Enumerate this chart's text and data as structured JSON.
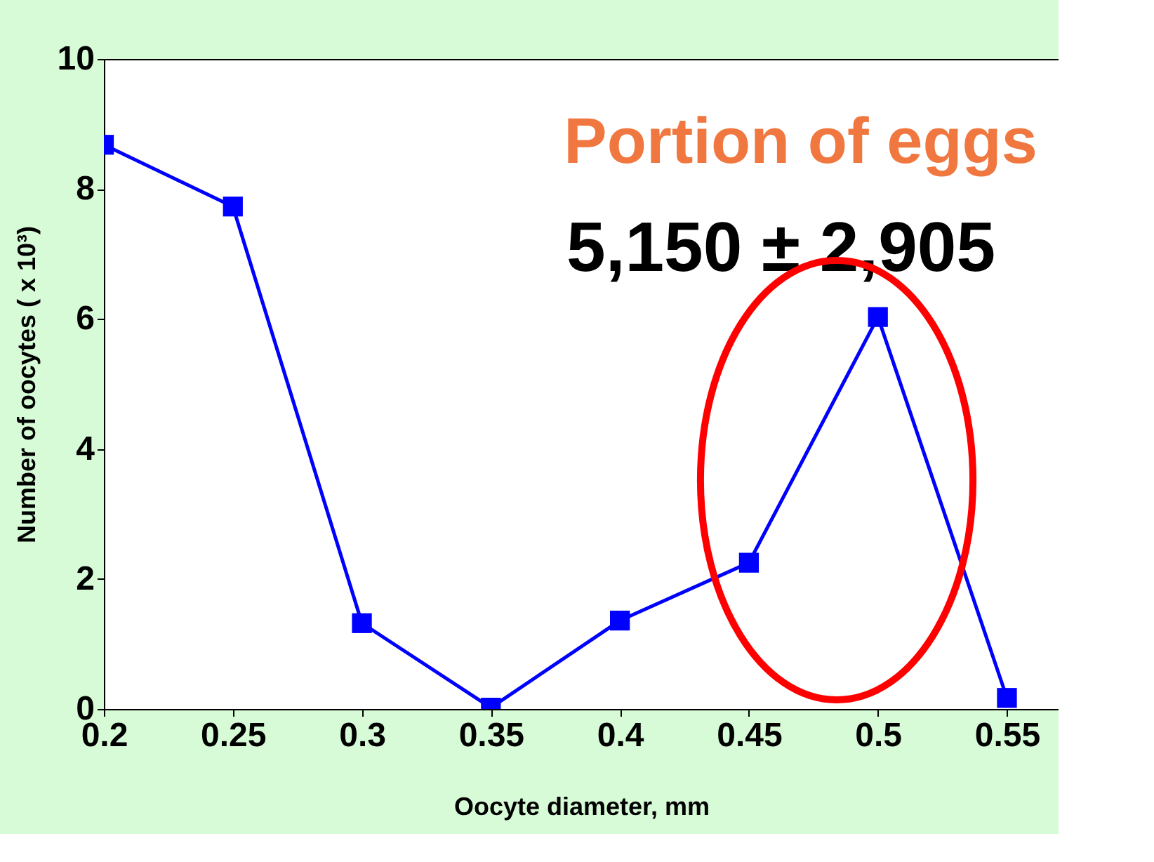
{
  "chart_data": {
    "type": "line",
    "xlabel": "Oocyte diameter, mm",
    "ylabel": "Number of oocytes ( x 10³)",
    "x": [
      0.2,
      0.25,
      0.3,
      0.35,
      0.4,
      0.45,
      0.5,
      0.55
    ],
    "series": [
      {
        "color": "#0000ff",
        "values": [
          8.68,
          7.73,
          1.32,
          0.02,
          1.36,
          2.25,
          6.03,
          0.17
        ]
      }
    ],
    "xlim": [
      0.2,
      0.57
    ],
    "xticks": [
      0.2,
      0.25,
      0.3,
      0.35,
      0.4,
      0.45,
      0.5,
      0.55
    ],
    "ylim": [
      0,
      10
    ],
    "yticks": [
      0,
      2,
      4,
      6,
      8,
      10
    ],
    "annotations": [
      "Portion of eggs",
      "5,150 ± 2,905"
    ],
    "marker": "square",
    "line_style": "solid",
    "grid": false,
    "legend": false
  }
}
